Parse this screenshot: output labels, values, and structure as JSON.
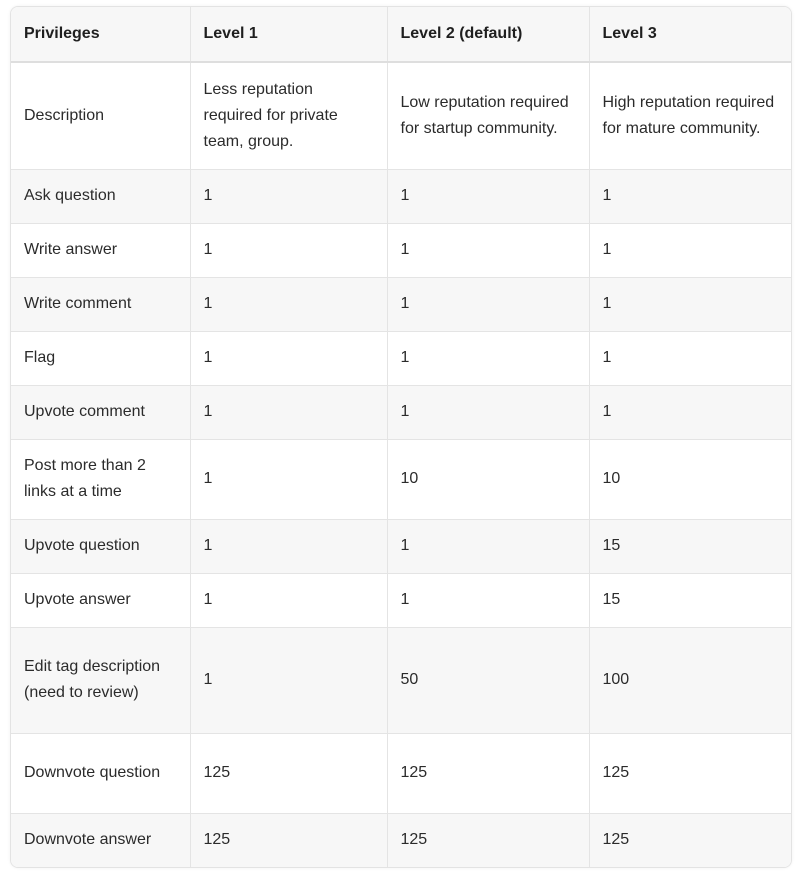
{
  "table": {
    "headers": [
      "Privileges",
      "Level 1",
      "Level 2 (default)",
      "Level 3"
    ],
    "rows": [
      [
        "Description",
        "Less reputation required for private team, group.",
        "Low reputation required for startup community.",
        "High reputation required for mature community."
      ],
      [
        "Ask question",
        "1",
        "1",
        "1"
      ],
      [
        "Write answer",
        "1",
        "1",
        "1"
      ],
      [
        "Write comment",
        "1",
        "1",
        "1"
      ],
      [
        "Flag",
        "1",
        "1",
        "1"
      ],
      [
        "Upvote comment",
        "1",
        "1",
        "1"
      ],
      [
        "Post more than 2 links at a time",
        "1",
        "10",
        "10"
      ],
      [
        "Upvote question",
        "1",
        "1",
        "15"
      ],
      [
        "Upvote answer",
        "1",
        "1",
        "15"
      ],
      [
        "Edit tag description (need to review)",
        "1",
        "50",
        "100"
      ],
      [
        "Downvote question",
        "125",
        "125",
        "125"
      ],
      [
        "Downvote answer",
        "125",
        "125",
        "125"
      ]
    ]
  }
}
